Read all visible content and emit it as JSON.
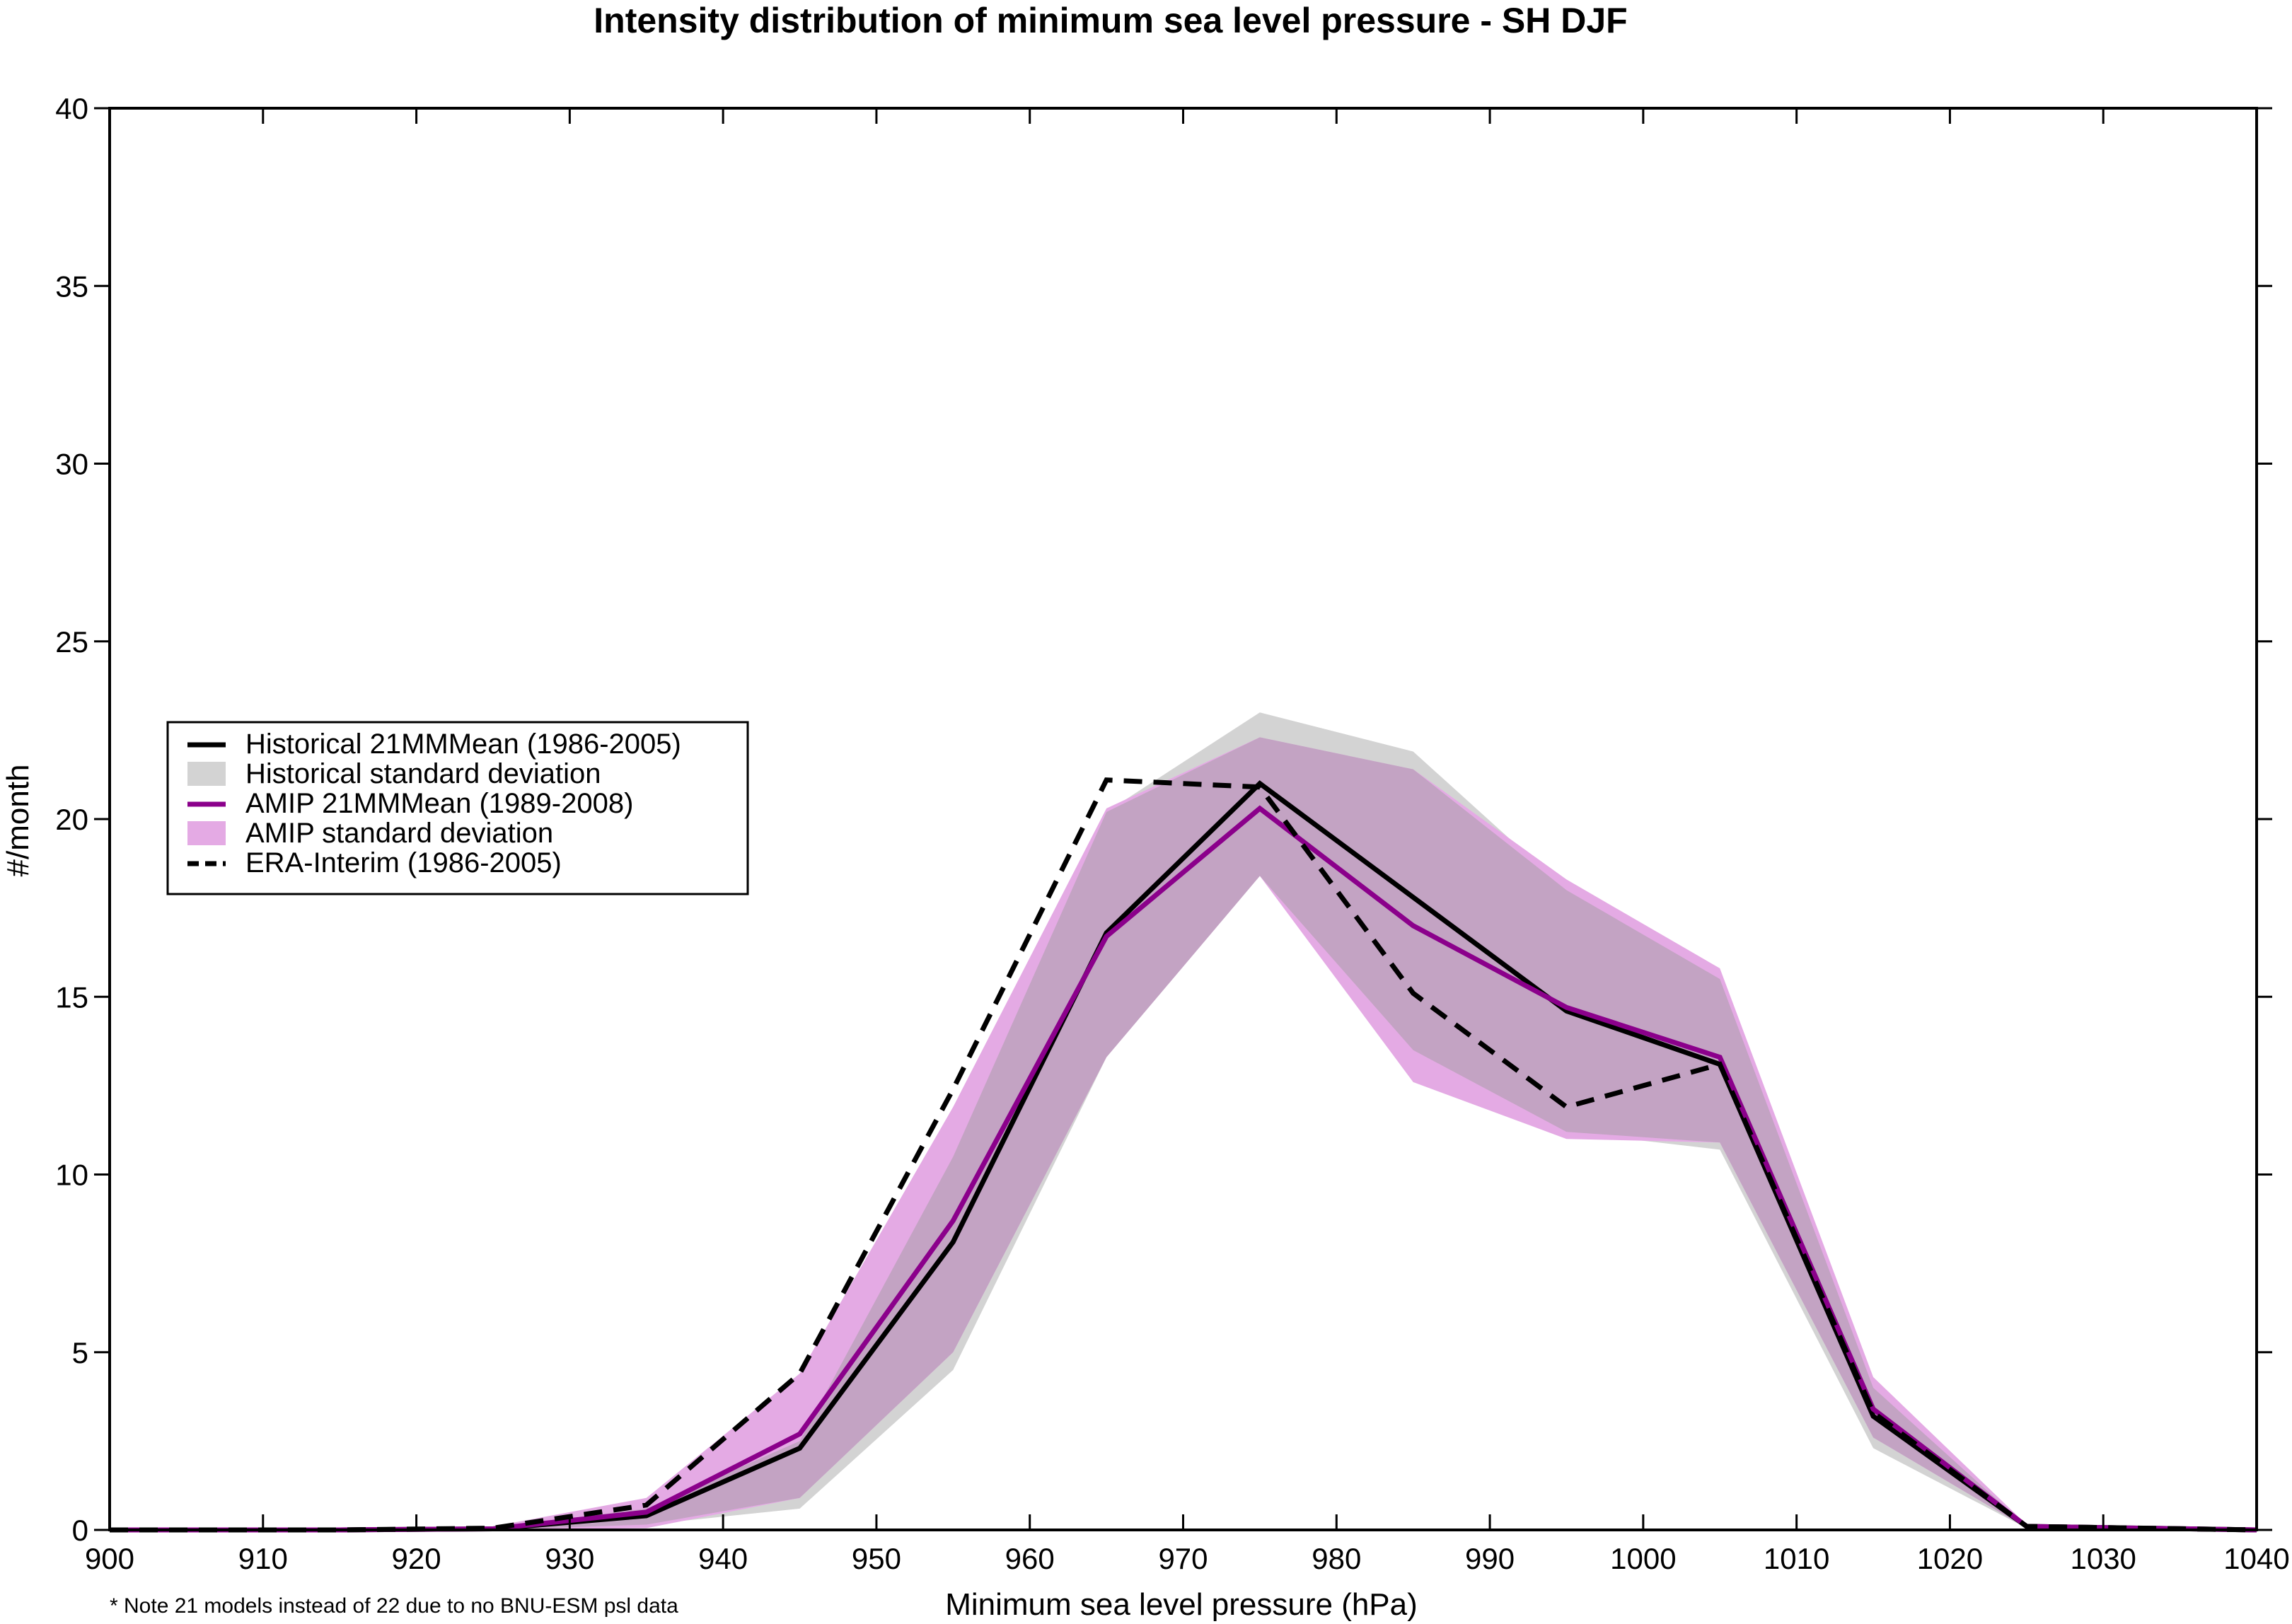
{
  "chart_data": {
    "type": "line",
    "title": "Intensity distribution of minimum sea level pressure - SH DJF",
    "xlabel": "Minimum sea level pressure (hPa)",
    "ylabel": "#/month",
    "note": "* Note 21 models instead of 22 due to no BNU-ESM psl data",
    "xlim": [
      900,
      1040
    ],
    "ylim": [
      0,
      40
    ],
    "xticks": [
      900,
      910,
      920,
      930,
      940,
      950,
      960,
      970,
      980,
      990,
      1000,
      1010,
      1020,
      1030,
      1040
    ],
    "yticks": [
      0,
      5,
      10,
      15,
      20,
      25,
      30,
      35,
      40
    ],
    "grid": false,
    "legend_position": "left",
    "x": [
      900,
      915,
      925,
      935,
      945,
      955,
      965,
      975,
      985,
      995,
      1005,
      1015,
      1025,
      1040
    ],
    "bands": [
      {
        "name": "Historical standard deviation",
        "color": "#d3d3d3",
        "upper": [
          0,
          0,
          0.05,
          0.6,
          2.5,
          10.5,
          20.2,
          23.0,
          21.9,
          18.0,
          15.5,
          4.0,
          0.1,
          0
        ],
        "lower": [
          0,
          0,
          0,
          0.15,
          0.6,
          4.5,
          13.3,
          18.4,
          13.5,
          11.2,
          10.7,
          2.3,
          0.05,
          0
        ]
      },
      {
        "name": "AMIP standard deviation",
        "color": "#e4aae4",
        "upper": [
          0,
          0,
          0.1,
          0.9,
          4.4,
          11.9,
          20.3,
          22.3,
          21.4,
          18.3,
          15.8,
          4.3,
          0.15,
          0
        ],
        "lower": [
          0,
          0,
          0,
          0.05,
          0.9,
          5.0,
          13.3,
          18.4,
          12.6,
          11.0,
          10.9,
          2.6,
          0.05,
          0
        ]
      }
    ],
    "overlap_color": "#c3a3c3",
    "series": [
      {
        "name": "Historical 21MMMean (1986-2005)",
        "color": "#000000",
        "style": "solid",
        "values": [
          0,
          0,
          0.03,
          0.4,
          2.3,
          8.1,
          16.8,
          21.0,
          17.8,
          14.6,
          13.1,
          3.2,
          0.1,
          0
        ]
      },
      {
        "name": "AMIP 21MMMean (1989-2008)",
        "color": "#8b008b",
        "style": "solid",
        "values": [
          0,
          0,
          0.03,
          0.5,
          2.7,
          8.7,
          16.7,
          20.3,
          17.0,
          14.7,
          13.3,
          3.4,
          0.1,
          0
        ]
      },
      {
        "name": "ERA-Interim (1986-2005)",
        "color": "#000000",
        "style": "dashed",
        "values": [
          0,
          0,
          0.05,
          0.7,
          4.4,
          12.4,
          21.1,
          20.9,
          15.1,
          11.9,
          13.1,
          3.3,
          0.1,
          0
        ]
      }
    ]
  }
}
